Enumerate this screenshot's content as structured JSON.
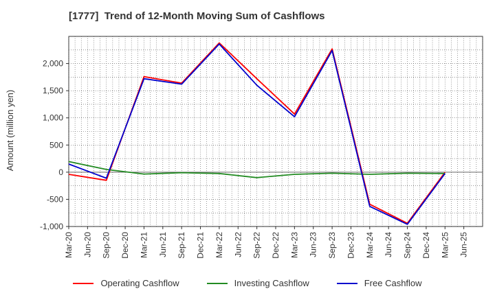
{
  "chart_data": {
    "type": "line",
    "title": "[1777]  Trend of 12-Month Moving Sum of Cashflows",
    "ylabel": "Amount (million yen)",
    "xlabel": "",
    "ylim": [
      -1000,
      2500
    ],
    "yticks": [
      -1000,
      -500,
      0,
      500,
      1000,
      1500,
      2000
    ],
    "ytick_labels": [
      "-1,000",
      "-500",
      "0",
      "500",
      "1,000",
      "1,500",
      "2,000"
    ],
    "xticks": [
      "Mar-20",
      "Jun-20",
      "Sep-20",
      "Dec-20",
      "Mar-21",
      "Jun-21",
      "Sep-21",
      "Dec-21",
      "Mar-22",
      "Jun-22",
      "Sep-22",
      "Dec-22",
      "Mar-23",
      "Jun-23",
      "Sep-23",
      "Dec-23",
      "Mar-24",
      "Jun-24",
      "Sep-24",
      "Dec-24",
      "Mar-25",
      "Jun-25"
    ],
    "grid": true,
    "legend_position": "bottom",
    "series": [
      {
        "name": "Operating Cashflow",
        "color": "#ff0000",
        "x": [
          "Mar-20",
          "Sep-20",
          "Mar-21",
          "Sep-21",
          "Mar-22",
          "Sep-22",
          "Mar-23",
          "Sep-23",
          "Mar-24",
          "Sep-24",
          "Mar-25"
        ],
        "values": [
          -40,
          -150,
          1760,
          1640,
          2380,
          1720,
          1070,
          2270,
          -590,
          -940,
          0
        ]
      },
      {
        "name": "Investing Cashflow",
        "color": "#228b22",
        "x": [
          "Mar-20",
          "Sep-20",
          "Mar-21",
          "Sep-21",
          "Mar-22",
          "Sep-22",
          "Mar-23",
          "Sep-23",
          "Mar-24",
          "Sep-24",
          "Mar-25"
        ],
        "values": [
          195,
          50,
          -35,
          -10,
          -25,
          -100,
          -40,
          -20,
          -40,
          -20,
          -25
        ]
      },
      {
        "name": "Free Cashflow",
        "color": "#0000cd",
        "x": [
          "Mar-20",
          "Sep-20",
          "Mar-21",
          "Sep-21",
          "Mar-22",
          "Sep-22",
          "Mar-23",
          "Sep-23",
          "Mar-24",
          "Sep-24",
          "Mar-25"
        ],
        "values": [
          150,
          -110,
          1720,
          1620,
          2360,
          1600,
          1020,
          2240,
          -630,
          -960,
          -25
        ]
      }
    ]
  }
}
